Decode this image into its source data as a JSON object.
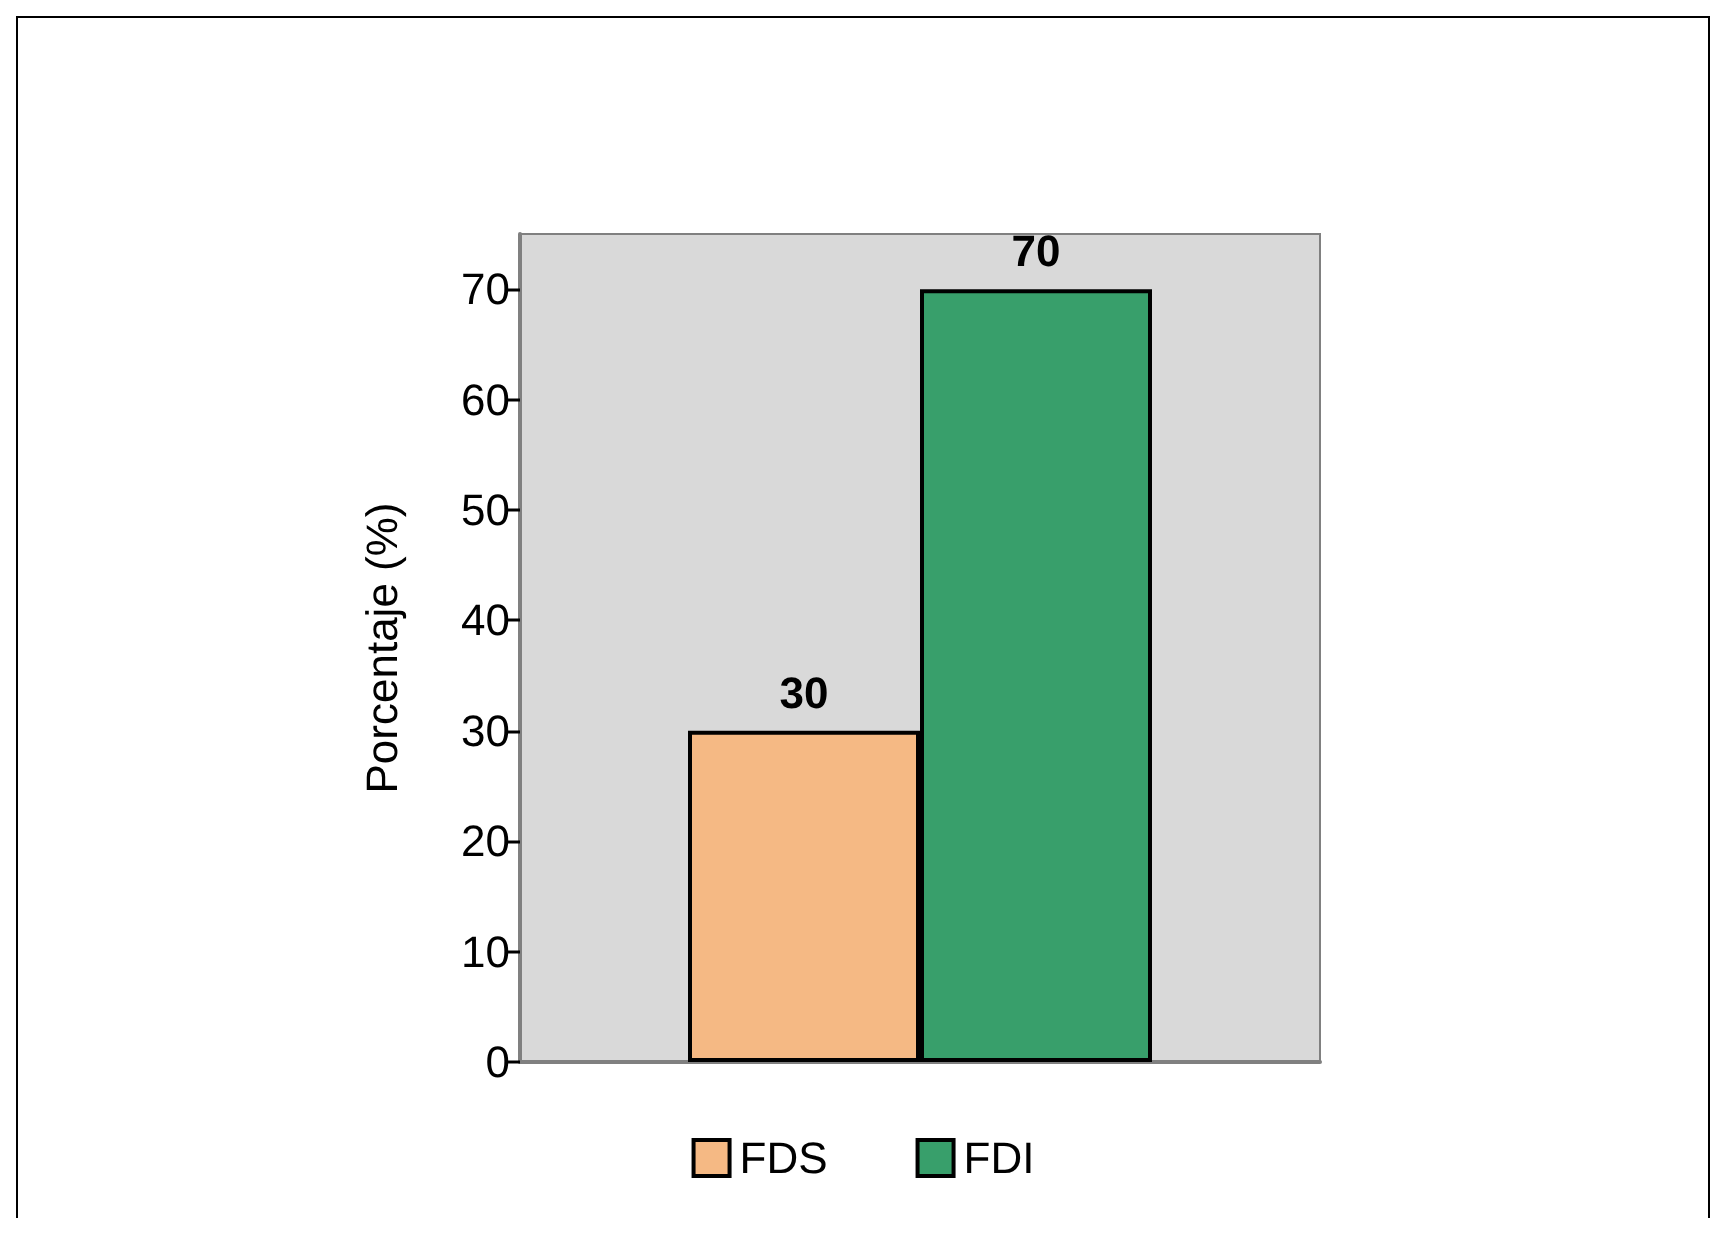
{
  "chart_data": {
    "type": "bar",
    "ylabel": "Porcentaje (%)",
    "categories": [
      null
    ],
    "series": [
      {
        "name": "FDS",
        "color": "#f5b984",
        "values": [
          30
        ]
      },
      {
        "name": "FDI",
        "color": "#389f6b",
        "values": [
          70
        ]
      }
    ],
    "ylim": [
      0,
      75
    ],
    "yticks": [
      0,
      10,
      20,
      30,
      40,
      50,
      60,
      70
    ],
    "data_labels": true,
    "legend": "bottom"
  }
}
